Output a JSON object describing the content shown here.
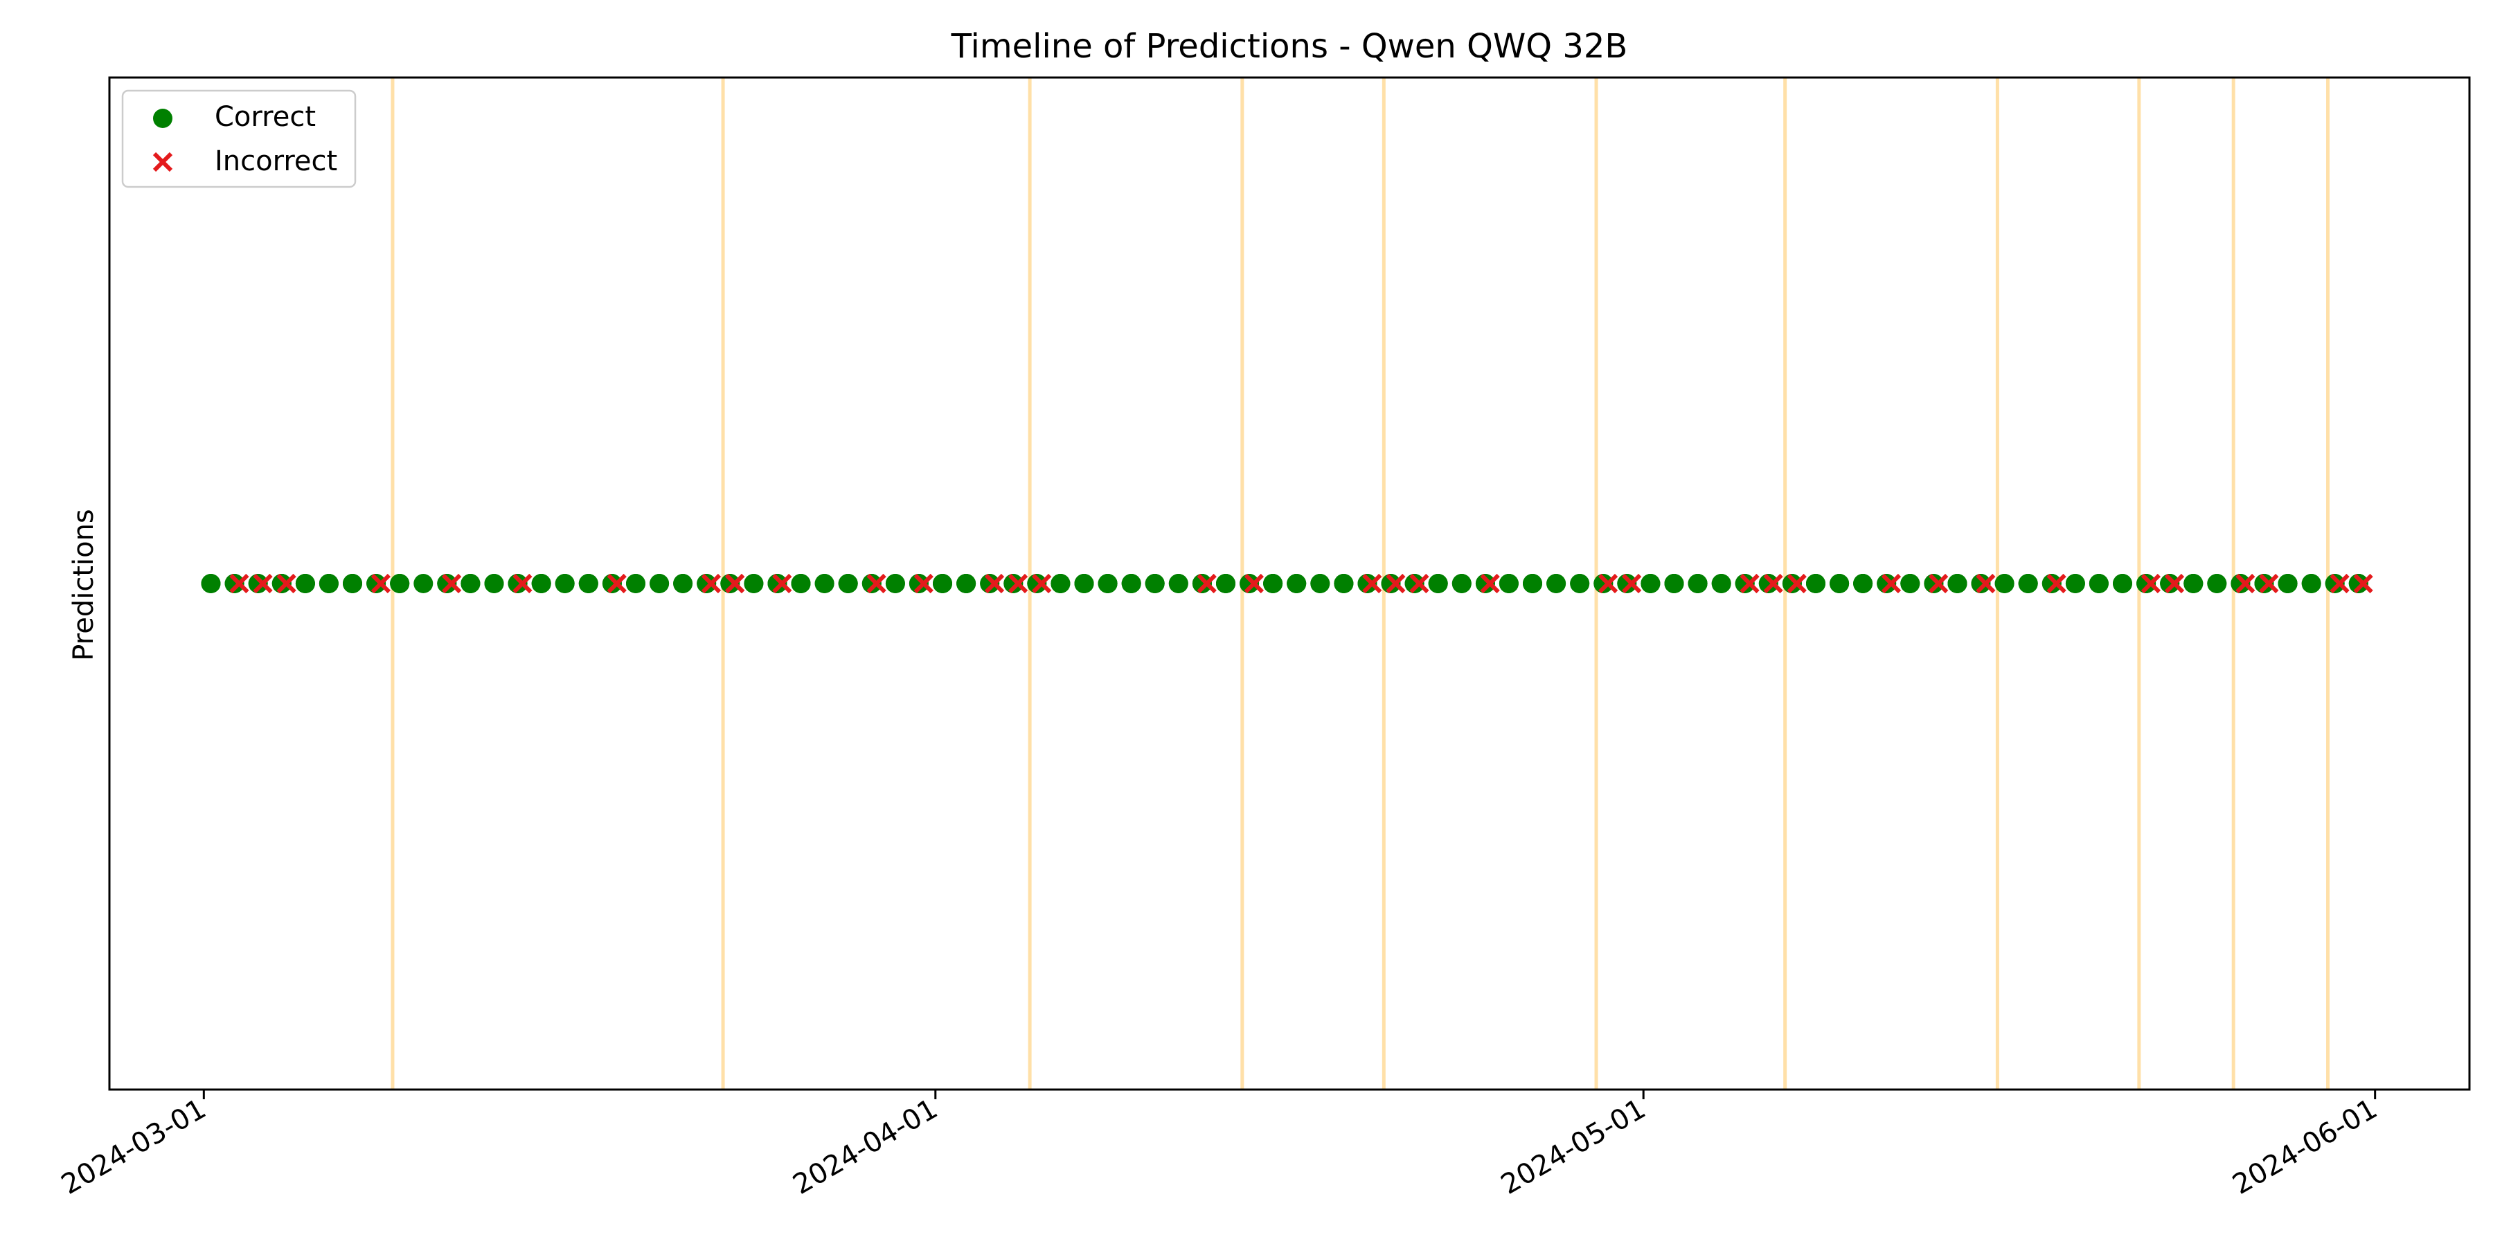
{
  "chart_data": {
    "type": "scatter",
    "title": "Timeline of Predictions - Qwen QWQ 32B",
    "xlabel": "",
    "ylabel": "Predictions",
    "x_axis_type": "date",
    "xlim": [
      "2024-02-26",
      "2024-06-05"
    ],
    "ylim": [
      -1,
      1
    ],
    "y_ticks_visible": false,
    "grid": false,
    "legend_position": "top-left",
    "x_ticks": [
      "2024-03-01",
      "2024-04-01",
      "2024-05-01",
      "2024-06-01"
    ],
    "vertical_lines": {
      "color": "#ffe0a8",
      "dates": [
        "2024-03-09",
        "2024-03-23",
        "2024-04-05",
        "2024-04-14",
        "2024-04-20",
        "2024-04-29",
        "2024-05-07",
        "2024-05-16",
        "2024-05-22",
        "2024-05-26",
        "2024-05-30"
      ]
    },
    "series": [
      {
        "name": "Correct",
        "marker": "circle",
        "color": "#008000",
        "x": [
          "2024-03-01",
          "2024-03-01",
          "2024-03-02",
          "2024-03-02",
          "2024-03-02",
          "2024-03-03",
          "2024-03-03",
          "2024-03-04",
          "2024-03-04",
          "2024-03-04",
          "2024-03-05",
          "2024-03-05",
          "2024-03-05",
          "2024-03-06",
          "2024-03-06",
          "2024-03-06",
          "2024-03-07",
          "2024-03-07",
          "2024-03-07",
          "2024-03-08",
          "2024-03-08",
          "2024-03-09",
          "2024-03-09",
          "2024-03-09",
          "2024-03-10",
          "2024-03-11",
          "2024-03-11",
          "2024-03-11",
          "2024-03-12",
          "2024-03-12",
          "2024-03-12",
          "2024-03-13",
          "2024-03-13",
          "2024-03-14",
          "2024-03-14",
          "2024-03-14",
          "2024-03-15",
          "2024-03-15",
          "2024-03-15",
          "2024-03-16",
          "2024-03-16",
          "2024-03-17",
          "2024-03-17",
          "2024-03-17",
          "2024-03-18",
          "2024-03-18",
          "2024-03-19",
          "2024-03-19",
          "2024-03-20",
          "2024-03-20",
          "2024-03-21",
          "2024-03-21",
          "2024-03-22",
          "2024-03-22",
          "2024-03-23",
          "2024-03-23",
          "2024-03-24",
          "2024-03-24",
          "2024-03-25",
          "2024-03-25",
          "2024-03-25",
          "2024-03-26",
          "2024-03-26",
          "2024-03-26",
          "2024-03-27",
          "2024-03-27",
          "2024-03-28",
          "2024-03-28",
          "2024-03-28",
          "2024-03-29",
          "2024-03-29",
          "2024-03-30",
          "2024-03-30",
          "2024-03-31",
          "2024-03-31",
          "2024-04-01",
          "2024-04-01",
          "2024-04-01",
          "2024-04-02",
          "2024-04-02",
          "2024-04-02",
          "2024-04-03",
          "2024-04-03",
          "2024-04-04",
          "2024-04-04",
          "2024-04-05",
          "2024-04-05",
          "2024-04-06",
          "2024-04-06",
          "2024-04-06",
          "2024-04-07",
          "2024-04-07",
          "2024-04-07",
          "2024-04-08",
          "2024-04-08",
          "2024-04-08",
          "2024-04-09",
          "2024-04-09",
          "2024-04-09",
          "2024-04-10",
          "2024-04-10",
          "2024-04-10",
          "2024-04-11",
          "2024-04-11",
          "2024-04-12",
          "2024-04-12",
          "2024-04-12",
          "2024-04-13",
          "2024-04-13",
          "2024-04-13",
          "2024-04-14",
          "2024-04-14",
          "2024-04-15",
          "2024-04-15",
          "2024-04-15",
          "2024-04-16",
          "2024-04-16",
          "2024-04-16",
          "2024-04-17",
          "2024-04-17",
          "2024-04-18",
          "2024-04-18",
          "2024-04-18",
          "2024-04-19",
          "2024-04-19",
          "2024-04-20",
          "2024-04-20",
          "2024-04-21",
          "2024-04-21",
          "2024-04-21",
          "2024-04-22",
          "2024-04-22",
          "2024-04-22",
          "2024-04-23",
          "2024-04-23",
          "2024-04-24",
          "2024-04-24",
          "2024-04-25",
          "2024-04-25",
          "2024-04-25",
          "2024-04-26",
          "2024-04-26",
          "2024-04-26",
          "2024-04-27",
          "2024-04-27",
          "2024-04-28",
          "2024-04-28",
          "2024-04-29",
          "2024-04-29",
          "2024-04-30",
          "2024-04-30",
          "2024-05-01",
          "2024-05-01",
          "2024-05-01",
          "2024-05-02",
          "2024-05-02",
          "2024-05-02",
          "2024-05-03",
          "2024-05-03",
          "2024-05-03",
          "2024-05-04",
          "2024-05-04",
          "2024-05-05",
          "2024-05-05",
          "2024-05-05",
          "2024-05-06",
          "2024-05-06",
          "2024-05-07",
          "2024-05-07",
          "2024-05-08",
          "2024-05-08",
          "2024-05-08",
          "2024-05-09",
          "2024-05-09",
          "2024-05-09",
          "2024-05-10",
          "2024-05-10",
          "2024-05-10",
          "2024-05-11",
          "2024-05-11",
          "2024-05-12",
          "2024-05-12",
          "2024-05-12",
          "2024-05-13",
          "2024-05-13",
          "2024-05-14",
          "2024-05-14",
          "2024-05-14",
          "2024-05-15",
          "2024-05-15",
          "2024-05-16",
          "2024-05-16",
          "2024-05-17",
          "2024-05-17",
          "2024-05-17",
          "2024-05-18",
          "2024-05-18",
          "2024-05-19",
          "2024-05-19",
          "2024-05-20",
          "2024-05-20",
          "2024-05-20",
          "2024-05-21",
          "2024-05-21",
          "2024-05-22",
          "2024-05-22",
          "2024-05-22",
          "2024-05-23",
          "2024-05-23",
          "2024-05-23",
          "2024-05-24",
          "2024-05-24",
          "2024-05-24",
          "2024-05-25",
          "2024-05-25",
          "2024-05-26",
          "2024-05-26",
          "2024-05-27",
          "2024-05-27",
          "2024-05-27",
          "2024-05-28",
          "2024-05-28",
          "2024-05-28",
          "2024-05-29",
          "2024-05-29",
          "2024-05-30",
          "2024-05-30",
          "2024-05-31",
          "2024-05-31",
          "2024-05-31"
        ],
        "y": 0
      },
      {
        "name": "Incorrect",
        "marker": "x",
        "color": "#e41a1c",
        "x": [
          "2024-03-02",
          "2024-03-03",
          "2024-03-04",
          "2024-03-08",
          "2024-03-11",
          "2024-03-14",
          "2024-03-18",
          "2024-03-22",
          "2024-03-23",
          "2024-03-23",
          "2024-03-25",
          "2024-03-29",
          "2024-03-31",
          "2024-04-03",
          "2024-04-04",
          "2024-04-05",
          "2024-04-12",
          "2024-04-14",
          "2024-04-19",
          "2024-04-20",
          "2024-04-21",
          "2024-04-24",
          "2024-04-29",
          "2024-04-30",
          "2024-05-05",
          "2024-05-06",
          "2024-05-07",
          "2024-05-11",
          "2024-05-13",
          "2024-05-15",
          "2024-05-18",
          "2024-05-22",
          "2024-05-23",
          "2024-05-26",
          "2024-05-27",
          "2024-05-30",
          "2024-05-31"
        ],
        "y": 0
      }
    ]
  }
}
